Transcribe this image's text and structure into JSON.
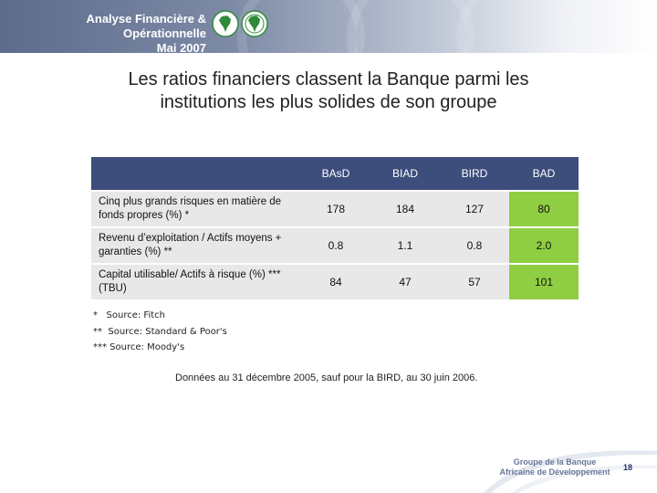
{
  "header": {
    "line1": "Analyse Financière & Opérationnelle",
    "line2": "Mai 2007"
  },
  "title": {
    "line1": "Les ratios financiers classent la Banque parmi les",
    "line2": "institutions les plus solides de son groupe"
  },
  "table": {
    "columns": [
      "BAsD",
      "BIAD",
      "BIRD",
      "BAD"
    ],
    "rows": [
      {
        "label": "Cinq plus grands risques en matière de fonds propres (%) *",
        "values": [
          "178",
          "184",
          "127",
          "80"
        ]
      },
      {
        "label": "Revenu d’exploitation / Actifs moyens + garanties (%) **",
        "values": [
          "0.8",
          "1.1",
          "0.8",
          "2.0"
        ]
      },
      {
        "label": "Capital utilisable/ Actifs à risque (%) *** (TBU)",
        "values": [
          "84",
          "47",
          "57",
          "101"
        ]
      }
    ]
  },
  "footnotes": [
    "*   Source: Fitch",
    "**  Source: Standard & Poor's",
    "*** Source: Moody's"
  ],
  "date_note": "Données au 31 décembre 2005, sauf pour la BIRD, au  30 juin 2006.",
  "footer": {
    "org_line1": "Groupe de la Banque",
    "org_line2": "Africaine de Développement",
    "page_number": "18"
  },
  "colors": {
    "header_band": "#5c6c8c",
    "table_header": "#3d4d7c",
    "cell_bg": "#e8e8e8",
    "highlight_column": "#8fce42",
    "logo_green": "#2e8b3a"
  }
}
